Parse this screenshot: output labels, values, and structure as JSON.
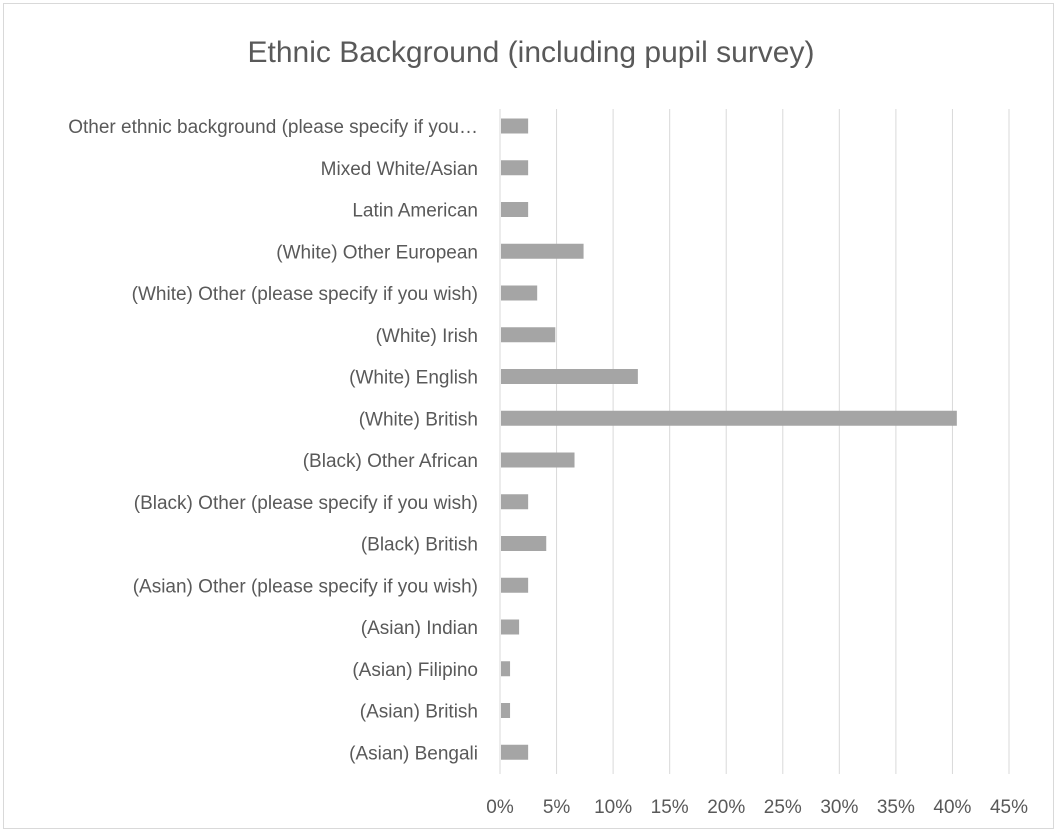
{
  "chart_data": {
    "type": "bar",
    "orientation": "horizontal",
    "title": "Ethnic Background (including pupil survey)",
    "xlabel": "",
    "ylabel": "",
    "xlim": [
      0,
      0.45
    ],
    "x_ticks": [
      0,
      0.05,
      0.1,
      0.15,
      0.2,
      0.25,
      0.3,
      0.35,
      0.4,
      0.45
    ],
    "x_tick_labels": [
      "0%",
      "5%",
      "10%",
      "15%",
      "20%",
      "25%",
      "30%",
      "35%",
      "40%",
      "45%"
    ],
    "grid": true,
    "legend": "none",
    "bar_color": "#a5a5a5",
    "categories": [
      "(Asian) Bengali",
      "(Asian) British",
      "(Asian) Filipino",
      "(Asian) Indian",
      "(Asian) Other (please specify if you wish)",
      "(Black) British",
      "(Black) Other (please specify if you wish)",
      "(Black) Other African",
      "(White) British",
      "(White) English",
      "(White) Irish",
      "(White) Other (please specify if you wish)",
      "(White) Other European",
      "Latin American",
      "Mixed White/Asian",
      "Other ethnic background (please specify if you…"
    ],
    "values": [
      0.024,
      0.008,
      0.008,
      0.016,
      0.024,
      0.04,
      0.024,
      0.065,
      0.403,
      0.121,
      0.048,
      0.032,
      0.073,
      0.024,
      0.024,
      0.024
    ]
  }
}
